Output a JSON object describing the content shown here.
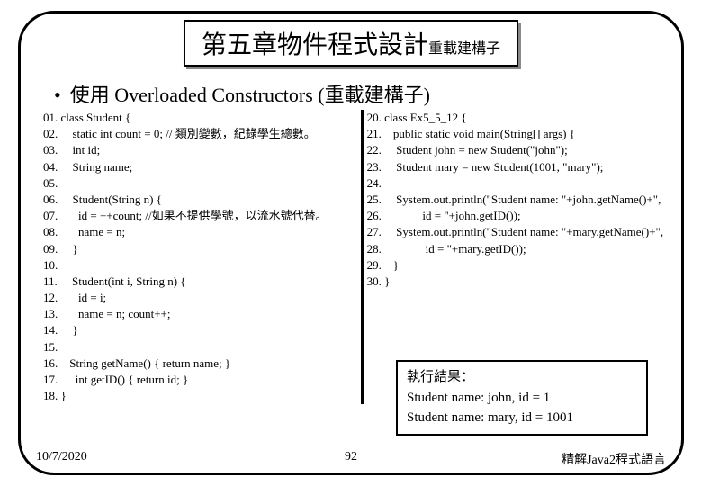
{
  "title": {
    "main": "第五章物件程式設計",
    "sub": "重載建構子"
  },
  "bullet": {
    "dot": "•",
    "text": "使用 Overloaded Constructors (重載建構子)"
  },
  "code_left": "01. class Student {\n02.     static int count = 0; // 類別變數，紀錄學生總數。\n03.     int id;\n04.     String name;\n05.\n06.     Student(String n) {\n07.       id = ++count; //如果不提供學號，以流水號代替。\n08.       name = n;\n09.     }\n10.\n11.     Student(int i, String n) {\n12.       id = i;\n13.       name = n; count++;\n14.     }\n15.\n16.    String getName() { return name; }\n17.      int getID() { return id; }\n18. }",
  "code_right": "20. class Ex5_5_12 {\n21.    public static void main(String[] args) {\n22.     Student john = new Student(\"john\");\n23.     Student mary = new Student(1001, \"mary\");\n24.\n25.     System.out.println(\"Student name: \"+john.getName()+\",\n26.              id = \"+john.getID());\n27.     System.out.println(\"Student name: \"+mary.getName()+\",\n28.               id = \"+mary.getID());\n29.    }\n30. }",
  "result": {
    "title": "執行結果：",
    "line1": "Student name: john, id = 1",
    "line2": "Student name: mary, id = 1001"
  },
  "footer": {
    "date": "10/7/2020",
    "page": "92",
    "book": "精解Java2程式語言"
  }
}
